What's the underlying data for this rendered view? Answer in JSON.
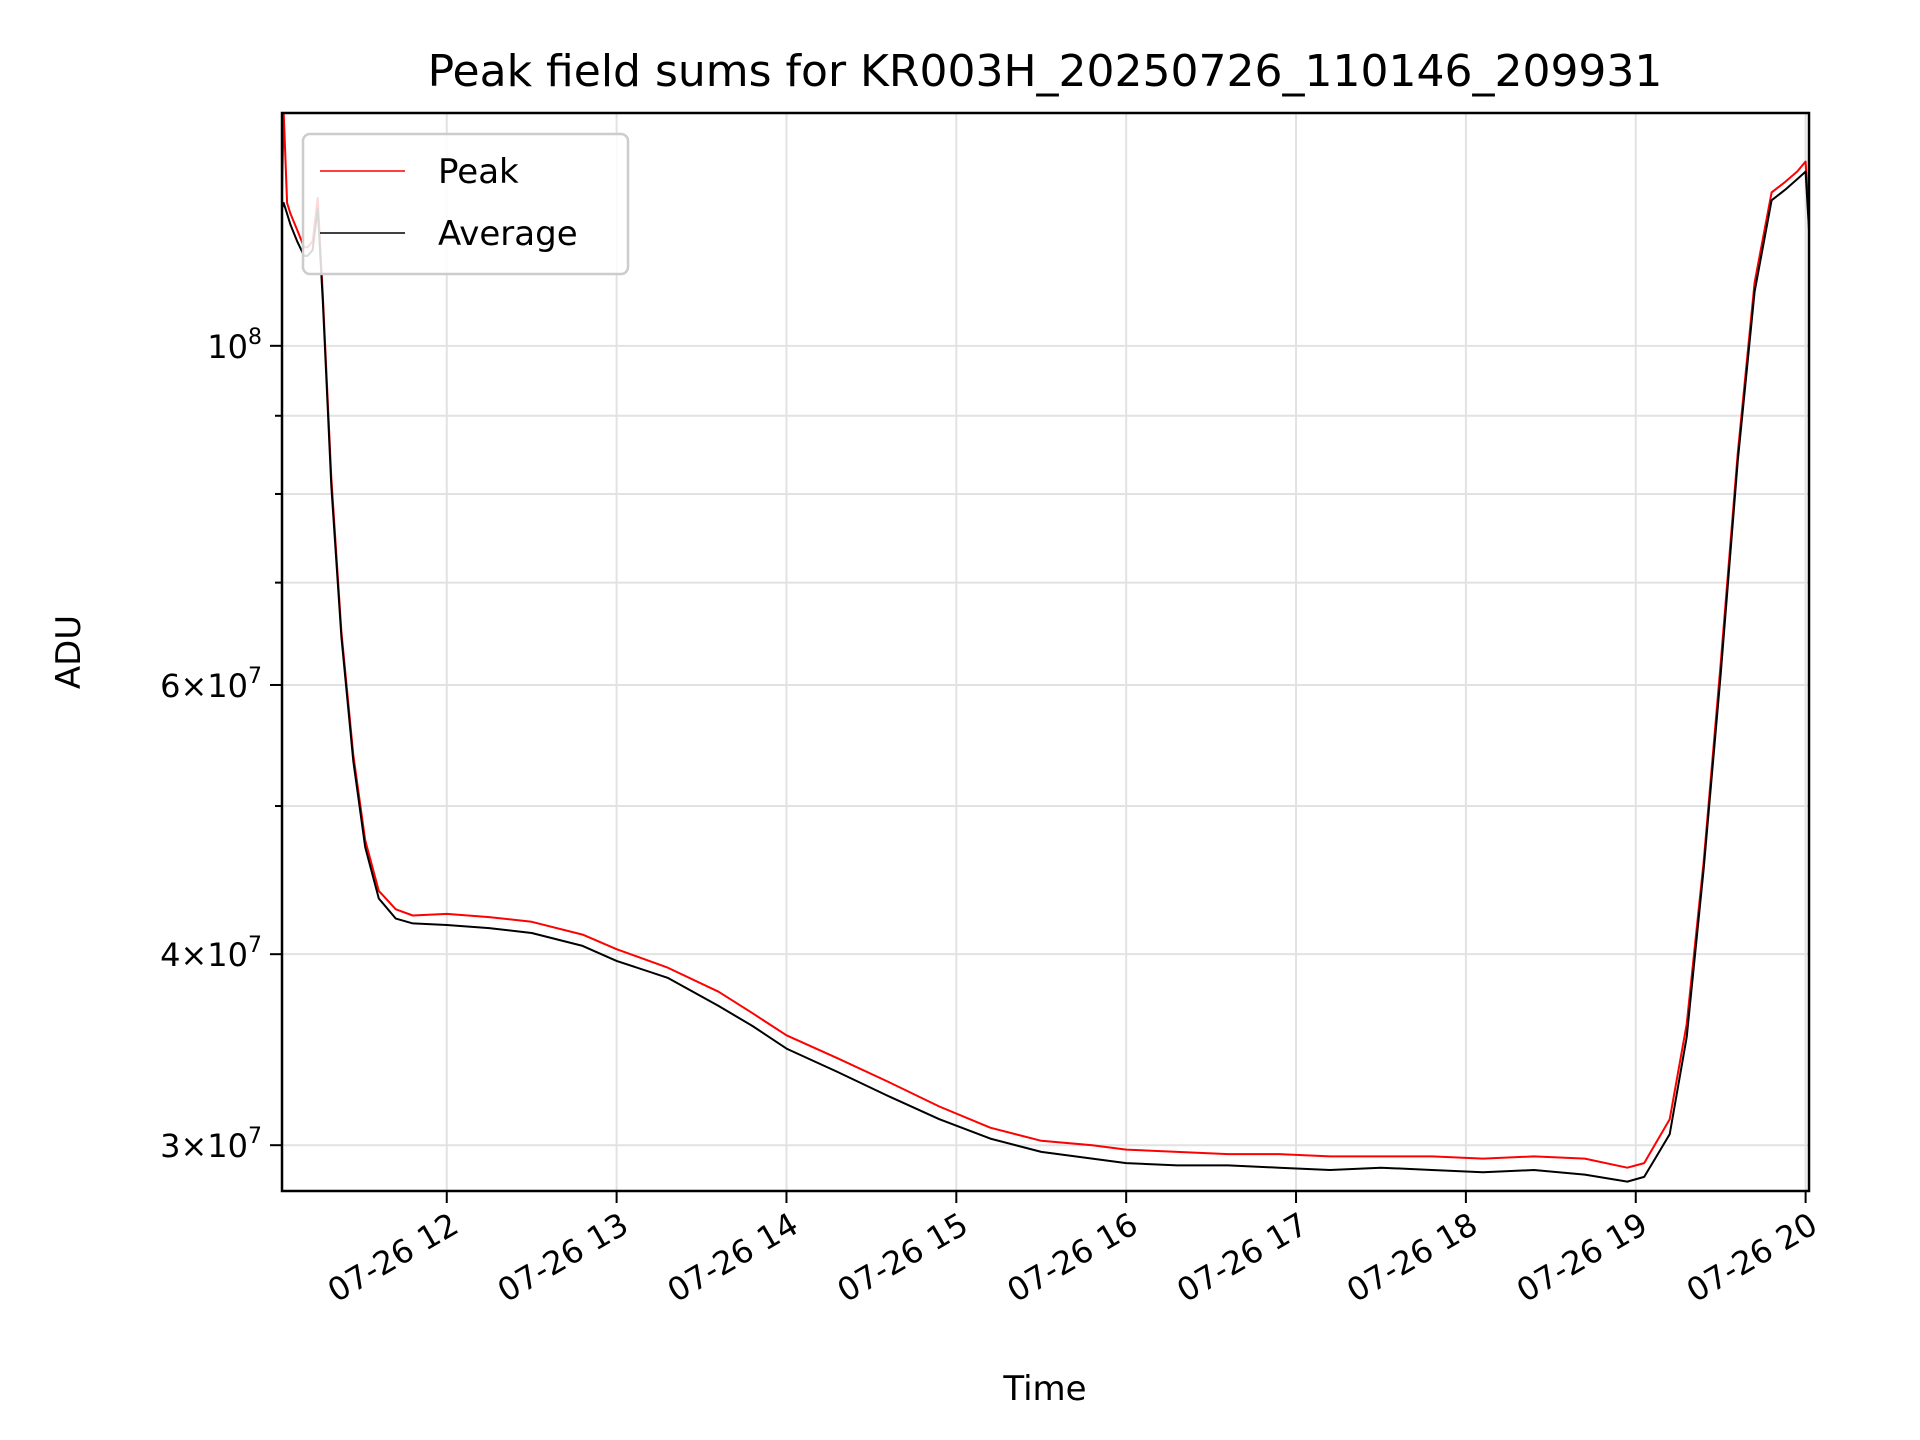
{
  "chart_data": {
    "type": "line",
    "title": "Peak field sums for KR003H_20250726_110146_209931",
    "xlabel": "Time",
    "ylabel": "ADU",
    "y_scale": "log",
    "ylim": [
      28000000,
      142000000
    ],
    "xlim_hours": [
      11.03,
      20.02
    ],
    "grid": true,
    "legend_position": "upper left",
    "x_ticks": [
      {
        "value": 12,
        "label": "07-26 12"
      },
      {
        "value": 13,
        "label": "07-26 13"
      },
      {
        "value": 14,
        "label": "07-26 14"
      },
      {
        "value": 15,
        "label": "07-26 15"
      },
      {
        "value": 16,
        "label": "07-26 16"
      },
      {
        "value": 17,
        "label": "07-26 17"
      },
      {
        "value": 18,
        "label": "07-26 18"
      },
      {
        "value": 19,
        "label": "07-26 19"
      },
      {
        "value": 20,
        "label": "07-26 20"
      }
    ],
    "y_ticks": [
      {
        "value": 30000000,
        "mant": "3",
        "exp": "7"
      },
      {
        "value": 40000000,
        "mant": "4",
        "exp": "7"
      },
      {
        "value": 60000000,
        "mant": "6",
        "exp": "7"
      },
      {
        "value": 100000000,
        "mant": "",
        "exp": "8"
      }
    ],
    "y_minor_ticks": [
      50000000,
      70000000,
      80000000,
      90000000
    ],
    "series": [
      {
        "name": "Peak",
        "color": "#ff0000",
        "x": [
          11.03,
          11.04,
          11.06,
          11.08,
          11.12,
          11.16,
          11.18,
          11.21,
          11.24,
          11.27,
          11.32,
          11.38,
          11.45,
          11.52,
          11.6,
          11.7,
          11.8,
          12.0,
          12.25,
          12.5,
          12.8,
          13.0,
          13.3,
          13.6,
          13.8,
          14.0,
          14.3,
          14.6,
          14.9,
          15.2,
          15.5,
          15.8,
          16.0,
          16.3,
          16.6,
          16.9,
          17.2,
          17.5,
          17.8,
          18.1,
          18.4,
          18.7,
          18.95,
          19.05,
          19.2,
          19.3,
          19.4,
          19.5,
          19.6,
          19.7,
          19.8,
          19.88,
          19.95,
          20.0,
          20.02
        ],
        "values": [
          126000000,
          142000000,
          124000000,
          122000000,
          119000000,
          116000000,
          116000000,
          117000000,
          125000000,
          108000000,
          82000000,
          65000000,
          54000000,
          47500000,
          44000000,
          42800000,
          42400000,
          42500000,
          42300000,
          42000000,
          41200000,
          40300000,
          39200000,
          37800000,
          36600000,
          35400000,
          34200000,
          33000000,
          31800000,
          30800000,
          30200000,
          30000000,
          29800000,
          29700000,
          29600000,
          29600000,
          29500000,
          29500000,
          29500000,
          29400000,
          29500000,
          29400000,
          29000000,
          29200000,
          31200000,
          36000000,
          46000000,
          62000000,
          85000000,
          110000000,
          126000000,
          128000000,
          130000000,
          132000000,
          120000000
        ]
      },
      {
        "name": "Average",
        "color": "#000000",
        "x": [
          11.03,
          11.04,
          11.06,
          11.08,
          11.12,
          11.16,
          11.18,
          11.21,
          11.24,
          11.27,
          11.32,
          11.38,
          11.45,
          11.52,
          11.6,
          11.7,
          11.8,
          12.0,
          12.25,
          12.5,
          12.8,
          13.0,
          13.3,
          13.6,
          13.8,
          14.0,
          14.3,
          14.6,
          14.9,
          15.2,
          15.5,
          15.8,
          16.0,
          16.3,
          16.6,
          16.9,
          17.2,
          17.5,
          17.8,
          18.1,
          18.4,
          18.7,
          18.95,
          19.05,
          19.2,
          19.3,
          19.4,
          19.5,
          19.6,
          19.7,
          19.8,
          19.88,
          19.95,
          20.0,
          20.02
        ],
        "values": [
          123000000,
          124000000,
          122000000,
          120000000,
          117000000,
          114500000,
          114500000,
          115500000,
          123000000,
          107000000,
          81000000,
          64500000,
          53500000,
          47000000,
          43500000,
          42200000,
          41900000,
          41800000,
          41600000,
          41300000,
          40500000,
          39600000,
          38600000,
          37000000,
          35900000,
          34700000,
          33500000,
          32300000,
          31200000,
          30300000,
          29700000,
          29400000,
          29200000,
          29100000,
          29100000,
          29000000,
          28900000,
          29000000,
          28900000,
          28800000,
          28900000,
          28700000,
          28400000,
          28600000,
          30500000,
          35300000,
          45500000,
          61000000,
          84000000,
          108500000,
          124500000,
          126500000,
          128500000,
          130000000,
          119000000
        ]
      }
    ]
  }
}
